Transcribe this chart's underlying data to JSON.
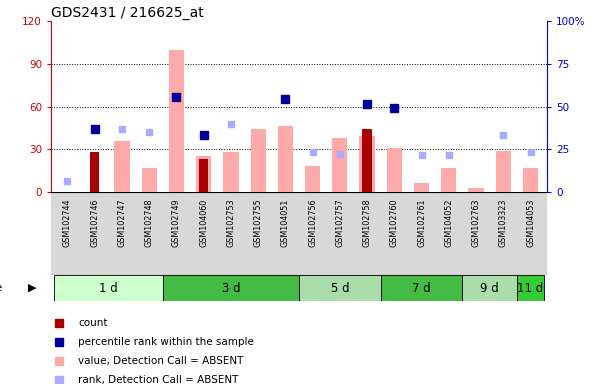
{
  "title": "GDS2431 / 216625_at",
  "samples": [
    "GSM102744",
    "GSM102746",
    "GSM102747",
    "GSM102748",
    "GSM102749",
    "GSM104060",
    "GSM102753",
    "GSM102755",
    "GSM104051",
    "GSM102756",
    "GSM102757",
    "GSM102758",
    "GSM102760",
    "GSM102761",
    "GSM104052",
    "GSM102763",
    "GSM103323",
    "GSM104053"
  ],
  "time_group_spans": [
    {
      "label": "1 d",
      "start": 0,
      "end": 4,
      "color": "#ccffcc"
    },
    {
      "label": "3 d",
      "start": 4,
      "end": 9,
      "color": "#44bb44"
    },
    {
      "label": "5 d",
      "start": 9,
      "end": 12,
      "color": "#aaddaa"
    },
    {
      "label": "7 d",
      "start": 12,
      "end": 15,
      "color": "#44bb44"
    },
    {
      "label": "9 d",
      "start": 15,
      "end": 17,
      "color": "#aaddaa"
    },
    {
      "label": "11 d",
      "start": 17,
      "end": 18,
      "color": "#33cc33"
    }
  ],
  "count_values": [
    0,
    28,
    0,
    0,
    0,
    23,
    0,
    0,
    0,
    0,
    0,
    44,
    0,
    0,
    0,
    0,
    0,
    0
  ],
  "count_color": "#aa0000",
  "percentile_rank_values": [
    null,
    44,
    null,
    null,
    67,
    40,
    null,
    null,
    65,
    null,
    null,
    62,
    59,
    null,
    null,
    null,
    null,
    null
  ],
  "percentile_rank_color": "#000099",
  "absent_value_values": [
    null,
    null,
    36,
    17,
    100,
    25,
    28,
    44,
    46,
    18,
    38,
    39,
    31,
    6,
    17,
    3,
    29,
    17
  ],
  "absent_value_color": "#ffaaaa",
  "absent_rank_values": [
    8,
    null,
    44,
    42,
    null,
    null,
    48,
    null,
    null,
    28,
    27,
    null,
    null,
    26,
    26,
    null,
    40,
    28
  ],
  "absent_rank_color": "#aaaaff",
  "ylim": [
    0,
    120
  ],
  "yticks_left": [
    0,
    30,
    60,
    90,
    120
  ],
  "ytick_labels_left": [
    "0",
    "30",
    "60",
    "90",
    "120"
  ],
  "ytick_labels_right": [
    "0",
    "25",
    "50",
    "75",
    "100%"
  ],
  "left_axis_color": "#cc0000",
  "right_axis_color": "#0000cc",
  "legend_items": [
    {
      "label": "count",
      "color": "#aa0000"
    },
    {
      "label": "percentile rank within the sample",
      "color": "#000099"
    },
    {
      "label": "value, Detection Call = ABSENT",
      "color": "#ffaaaa"
    },
    {
      "label": "rank, Detection Call = ABSENT",
      "color": "#aaaaff"
    }
  ]
}
